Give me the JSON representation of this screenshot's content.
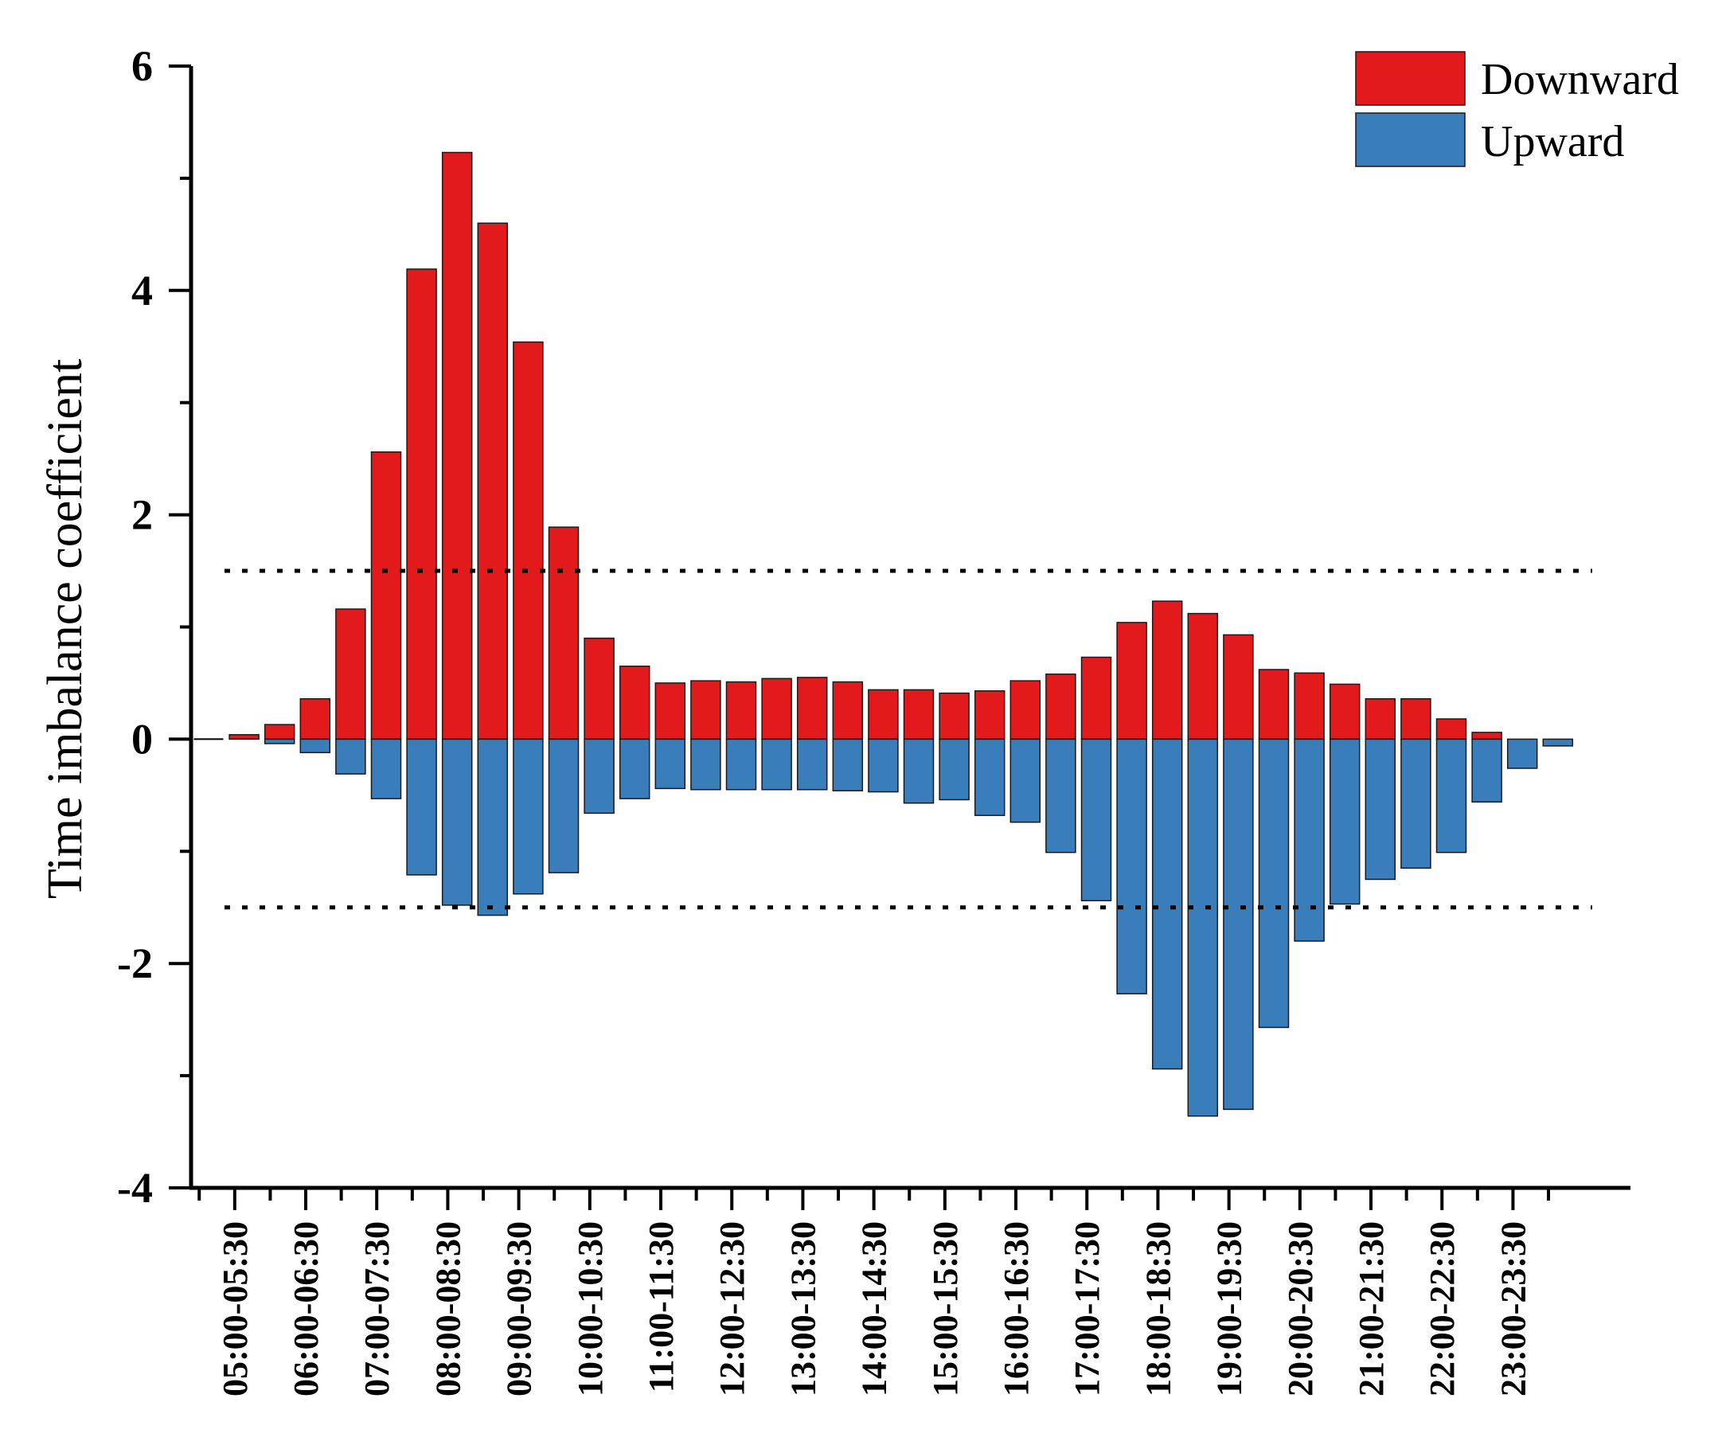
{
  "chart_data": {
    "type": "bar",
    "title": "",
    "xlabel": "",
    "ylabel": "Time imbalance coefficient",
    "ylim": [
      -4,
      6
    ],
    "yticks": [
      -4,
      -2,
      0,
      2,
      4,
      6
    ],
    "threshold_lines": [
      1.5,
      -1.5
    ],
    "colors": {
      "Downward": "#e31a1c",
      "Upward": "#3a7dbb",
      "edge": "#1a1a1a"
    },
    "legend": {
      "position": "top-right",
      "entries": [
        "Downward",
        "Upward"
      ]
    },
    "tick_labels": [
      "05:00-05:30",
      "06:00-06:30",
      "07:00-07:30",
      "08:00-08:30",
      "09:00-09:30",
      "10:00-10:30",
      "11:00-11:30",
      "12:00-12:30",
      "13:00-13:30",
      "14:00-14:30",
      "15:00-15:30",
      "16:00-16:30",
      "17:00-17:30",
      "18:00-18:30",
      "19:00-19:30",
      "20:00-20:30",
      "21:00-21:30",
      "22:00-22:30",
      "23:00-23:30"
    ],
    "x_slots": 39,
    "series": [
      {
        "name": "Downward",
        "values": [
          0.0,
          0.04,
          0.13,
          0.36,
          1.16,
          2.56,
          4.19,
          5.23,
          4.6,
          3.54,
          1.89,
          0.9,
          0.65,
          0.5,
          0.52,
          0.51,
          0.54,
          0.55,
          0.51,
          0.44,
          0.44,
          0.41,
          0.43,
          0.52,
          0.58,
          0.73,
          1.04,
          1.23,
          1.12,
          0.93,
          0.62,
          0.59,
          0.49,
          0.36,
          0.36,
          0.18,
          0.06,
          0.0,
          0.0
        ]
      },
      {
        "name": "Upward",
        "values": [
          0.0,
          0.0,
          -0.04,
          -0.12,
          -0.31,
          -0.53,
          -1.21,
          -1.48,
          -1.57,
          -1.38,
          -1.19,
          -0.66,
          -0.53,
          -0.44,
          -0.45,
          -0.45,
          -0.45,
          -0.45,
          -0.46,
          -0.47,
          -0.57,
          -0.54,
          -0.68,
          -0.74,
          -1.01,
          -1.44,
          -2.27,
          -2.94,
          -3.36,
          -3.3,
          -2.57,
          -1.8,
          -1.47,
          -1.25,
          -1.15,
          -1.01,
          -0.56,
          -0.26,
          -0.06
        ]
      }
    ]
  }
}
